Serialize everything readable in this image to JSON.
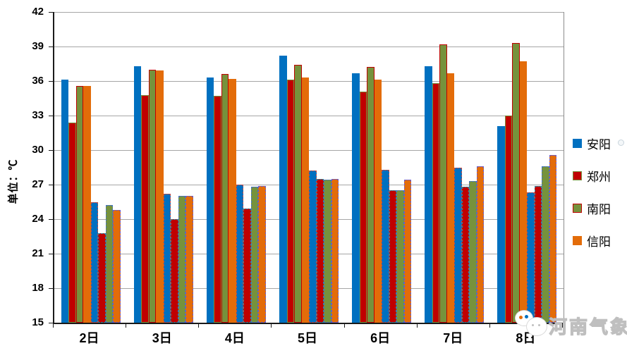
{
  "chart_data": {
    "type": "bar",
    "title": "",
    "ylabel": "单位：℃",
    "xlabel": "",
    "ylim": [
      15,
      42
    ],
    "y_ticks": [
      42,
      39,
      36,
      33,
      30,
      27,
      24,
      21,
      18,
      15
    ],
    "grid": true,
    "legend_position": "right",
    "categories": [
      "2日",
      "3日",
      "4日",
      "5日",
      "6日",
      "7日",
      "8日"
    ],
    "series": [
      {
        "name": "安阳",
        "kind": "max-temp",
        "style": "solid",
        "color": "#0070C0",
        "border": "#0070C0",
        "values": [
          36.1,
          37.3,
          36.3,
          38.2,
          36.7,
          37.3,
          32.1
        ]
      },
      {
        "name": "郑州",
        "kind": "max-temp",
        "style": "solid",
        "color": "#C00000",
        "border": "#76923C",
        "values": [
          32.4,
          34.8,
          34.7,
          36.1,
          35.1,
          35.8,
          33.0
        ]
      },
      {
        "name": "南阳",
        "kind": "max-temp",
        "style": "solid",
        "color": "#76923C",
        "border": "#C00000",
        "values": [
          35.6,
          37.0,
          36.6,
          37.4,
          37.2,
          39.2,
          39.3
        ]
      },
      {
        "name": "信阳",
        "kind": "max-temp",
        "style": "solid",
        "color": "#E36C09",
        "border": "#E36C09",
        "values": [
          35.6,
          36.9,
          36.2,
          36.3,
          36.1,
          36.7,
          37.7
        ]
      },
      {
        "name": "安阳",
        "kind": "min-temp",
        "style": "dashed",
        "color": "#0070C0",
        "border": "#BE4B48",
        "values": [
          25.5,
          26.2,
          27.0,
          28.2,
          28.3,
          28.5,
          26.3
        ]
      },
      {
        "name": "郑州",
        "kind": "min-temp",
        "style": "dashed",
        "color": "#C00000",
        "border": "#31859C",
        "values": [
          22.8,
          24.0,
          24.9,
          27.5,
          26.5,
          26.8,
          26.9
        ]
      },
      {
        "name": "南阳",
        "kind": "min-temp",
        "style": "dashed",
        "color": "#76923C",
        "border": "#4472C4",
        "values": [
          25.2,
          26.0,
          26.8,
          27.4,
          26.5,
          27.3,
          28.6
        ]
      },
      {
        "name": "信阳",
        "kind": "min-temp",
        "style": "dashed",
        "color": "#E36C09",
        "border": "#6A5ACD",
        "values": [
          24.8,
          26.0,
          26.9,
          27.5,
          27.4,
          28.6,
          29.6
        ]
      }
    ],
    "legend": [
      {
        "label": "安阳",
        "color": "#0070C0",
        "border": "#0070C0"
      },
      {
        "label": "郑州",
        "color": "#C00000",
        "border": "#76923C"
      },
      {
        "label": "南阳",
        "color": "#76923C",
        "border": "#C00000"
      },
      {
        "label": "信阳",
        "color": "#E36C09",
        "border": "#E36C09"
      }
    ],
    "gridline_color": "#A6A6A6"
  },
  "watermark": {
    "text": "河南气象"
  }
}
